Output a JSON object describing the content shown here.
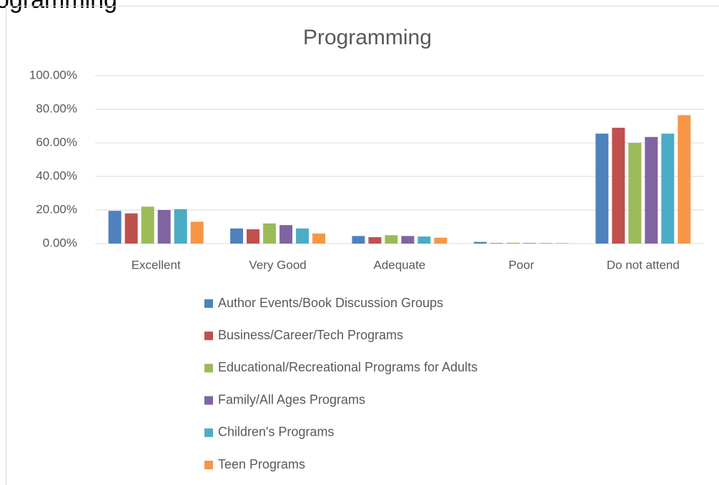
{
  "heading": "Programming",
  "chart_data": {
    "type": "bar",
    "title": "Programming",
    "categories": [
      "Excellent",
      "Very Good",
      "Adequate",
      "Poor",
      "Do not attend"
    ],
    "series": [
      {
        "name": "Author Events/Book Discussion Groups",
        "color": "#4f81bd",
        "values": [
          19.5,
          9,
          4.5,
          1,
          65.5
        ]
      },
      {
        "name": "Business/Career/Tech Programs",
        "color": "#c0504d",
        "values": [
          18,
          8.5,
          3.8,
          0.3,
          69
        ]
      },
      {
        "name": "Educational/Recreational Programs for Adults",
        "color": "#9bbb59",
        "values": [
          22,
          12,
          5,
          0.5,
          60
        ]
      },
      {
        "name": "Family/All Ages Programs",
        "color": "#8064a2",
        "values": [
          20,
          11,
          4.5,
          0.3,
          63.5
        ]
      },
      {
        "name": "Children's Programs",
        "color": "#4bacc6",
        "values": [
          20.5,
          9,
          4.2,
          0.3,
          65.5
        ]
      },
      {
        "name": "Teen Programs",
        "color": "#f79646",
        "values": [
          13,
          6,
          3.5,
          0.3,
          76.5
        ]
      }
    ],
    "ylim": [
      0,
      100
    ],
    "yticks": [
      {
        "value": 0,
        "label": "0.00%"
      },
      {
        "value": 20,
        "label": "20.00%"
      },
      {
        "value": 40,
        "label": "40.00%"
      },
      {
        "value": 60,
        "label": "60.00%"
      },
      {
        "value": 80,
        "label": "80.00%"
      },
      {
        "value": 100,
        "label": "100.00%"
      }
    ],
    "grid": true,
    "legend": "bottom"
  }
}
